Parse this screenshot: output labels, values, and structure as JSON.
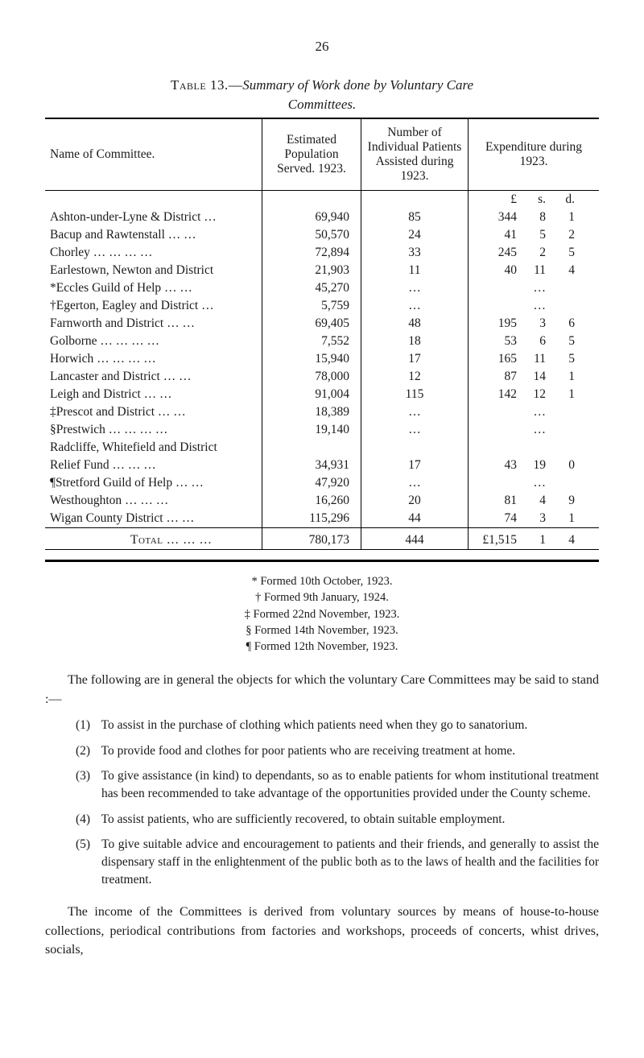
{
  "page_number": "26",
  "caption_prefix": "Table 13.—",
  "caption_italic": "Summary of Work done by Voluntary Care",
  "caption_line2": "Committees.",
  "table": {
    "headers": {
      "name": "Name of Committee.",
      "population": "Estimated Population Served. 1923.",
      "patients": "Number of Individual Patients Assisted during 1923.",
      "expenditure": "Expenditure during 1923."
    },
    "exp_header": {
      "l": "£",
      "s": "s.",
      "d": "d."
    },
    "rows": [
      {
        "name": "Ashton-under-Lyne & District …",
        "pop": "69,940",
        "pat": "85",
        "l": "344",
        "s": "8",
        "d": "1"
      },
      {
        "name": "Bacup and Rawtenstall …   …",
        "pop": "50,570",
        "pat": "24",
        "l": "41",
        "s": "5",
        "d": "2"
      },
      {
        "name": "Chorley   …   …   …   …",
        "pop": "72,894",
        "pat": "33",
        "l": "245",
        "s": "2",
        "d": "5"
      },
      {
        "name": "Earlestown, Newton and District",
        "pop": "21,903",
        "pat": "11",
        "l": "40",
        "s": "11",
        "d": "4"
      },
      {
        "name": "*Eccles Guild of Help   …   …",
        "pop": "45,270",
        "pat": "…",
        "l": "",
        "s": "…",
        "d": ""
      },
      {
        "name": "†Egerton, Eagley and District   …",
        "pop": "5,759",
        "pat": "…",
        "l": "",
        "s": "…",
        "d": ""
      },
      {
        "name": "Farnworth and District …   …",
        "pop": "69,405",
        "pat": "48",
        "l": "195",
        "s": "3",
        "d": "6"
      },
      {
        "name": "Golborne   …   …   …   …",
        "pop": "7,552",
        "pat": "18",
        "l": "53",
        "s": "6",
        "d": "5"
      },
      {
        "name": "Horwich   …   …   …   …",
        "pop": "15,940",
        "pat": "17",
        "l": "165",
        "s": "11",
        "d": "5"
      },
      {
        "name": "Lancaster and District   …   …",
        "pop": "78,000",
        "pat": "12",
        "l": "87",
        "s": "14",
        "d": "1"
      },
      {
        "name": "Leigh and District   …   …",
        "pop": "91,004",
        "pat": "115",
        "l": "142",
        "s": "12",
        "d": "1"
      },
      {
        "name": "‡Prescot and District   …   …",
        "pop": "18,389",
        "pat": "…",
        "l": "",
        "s": "…",
        "d": ""
      },
      {
        "name": "§Prestwich …   …   …   …",
        "pop": "19,140",
        "pat": "…",
        "l": "",
        "s": "…",
        "d": ""
      },
      {
        "name": "Radcliffe, Whitefield and District",
        "pop": "",
        "pat": "",
        "l": "",
        "s": "",
        "d": ""
      },
      {
        "name": "   Relief Fund   …   …   …",
        "pop": "34,931",
        "pat": "17",
        "l": "43",
        "s": "19",
        "d": "0"
      },
      {
        "name": "¶Stretford Guild of Help …   …",
        "pop": "47,920",
        "pat": "…",
        "l": "",
        "s": "…",
        "d": ""
      },
      {
        "name": "Westhoughton   …   …   …",
        "pop": "16,260",
        "pat": "20",
        "l": "81",
        "s": "4",
        "d": "9"
      },
      {
        "name": "Wigan County District   …   …",
        "pop": "115,296",
        "pat": "44",
        "l": "74",
        "s": "3",
        "d": "1"
      }
    ],
    "total": {
      "label": "Total …   …   …",
      "pop": "780,173",
      "pat": "444",
      "l": "£1,515",
      "s": "1",
      "d": "4"
    }
  },
  "footnotes": [
    "* Formed 10th October, 1923.",
    "† Formed 9th January, 1924.",
    "‡ Formed 22nd November, 1923.",
    "§ Formed 14th November, 1923.",
    "¶ Formed 12th November, 1923."
  ],
  "para_intro": "The following are in general the objects for which the voluntary Care Committees may be said to stand :—",
  "list_items": [
    {
      "n": "(1)",
      "t": "To assist in the purchase of clothing which patients need when they go to sanatorium."
    },
    {
      "n": "(2)",
      "t": "To provide food and clothes for poor patients who are receiving treatment at home."
    },
    {
      "n": "(3)",
      "t": "To give assistance (in kind) to dependants, so as to enable patients for whom institutional treatment has been recommended to take advantage of the opportunities provided under the County scheme."
    },
    {
      "n": "(4)",
      "t": "To assist patients, who are sufficiently recovered, to obtain suitable employment."
    },
    {
      "n": "(5)",
      "t": "To give suitable advice and encouragement to patients and their friends, and generally to assist the dispensary staff in the enlightenment of the public both as to the laws of health and the facilities for treatment."
    }
  ],
  "para_after1": "The income of the Committees is derived from voluntary sources by means of house-to-house collections, periodical contributions from factories and workshops, proceeds of concerts, whist drives, socials,"
}
